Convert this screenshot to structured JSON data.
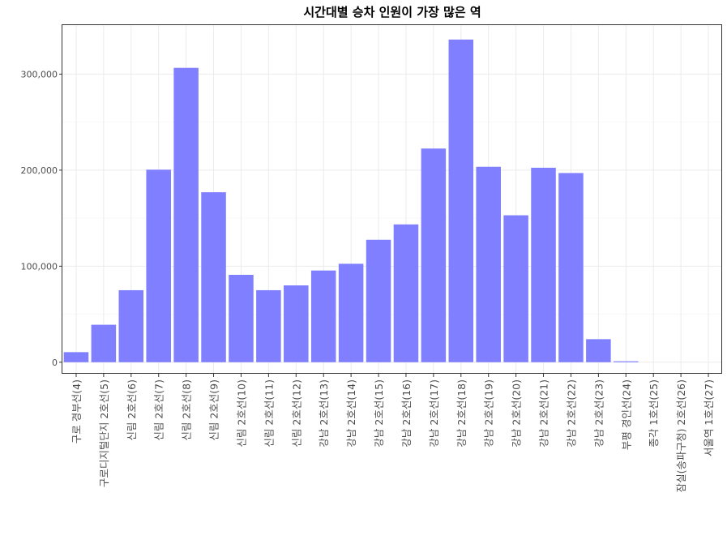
{
  "chart_data": {
    "type": "bar",
    "title": "시간대별 승차 인원이 가장 많은 역",
    "xlabel": "",
    "ylabel": "",
    "categories": [
      "구로 경부선(4)",
      "구로디지털단지 2호선(5)",
      "신림 2호선(6)",
      "신림 2호선(7)",
      "신림 2호선(8)",
      "신림 2호선(9)",
      "신림 2호선(10)",
      "신림 2호선(11)",
      "신림 2호선(12)",
      "강남 2호선(13)",
      "강남 2호선(14)",
      "강남 2호선(15)",
      "강남 2호선(16)",
      "강남 2호선(17)",
      "강남 2호선(18)",
      "강남 2호선(19)",
      "강남 2호선(20)",
      "강남 2호선(21)",
      "강남 2호선(22)",
      "강남 2호선(23)",
      "부평 경인선(24)",
      "종각 1호선(25)",
      "잠실(송파구청) 2호선(26)",
      "서울역 1호선(27)"
    ],
    "values": [
      10500,
      39000,
      75000,
      200500,
      306500,
      177000,
      91000,
      75000,
      80000,
      95500,
      102500,
      127500,
      143500,
      222500,
      336000,
      203500,
      153000,
      202500,
      197000,
      24000,
      1000,
      0,
      0,
      0
    ],
    "ylim": [
      -12000,
      351000
    ],
    "yticks": [
      0,
      100000,
      200000,
      300000
    ],
    "ytick_labels": [
      "0",
      "100,000",
      "200,000",
      "300,000"
    ],
    "grid": true,
    "legend": "none",
    "bar_color": "#7f7fff"
  }
}
